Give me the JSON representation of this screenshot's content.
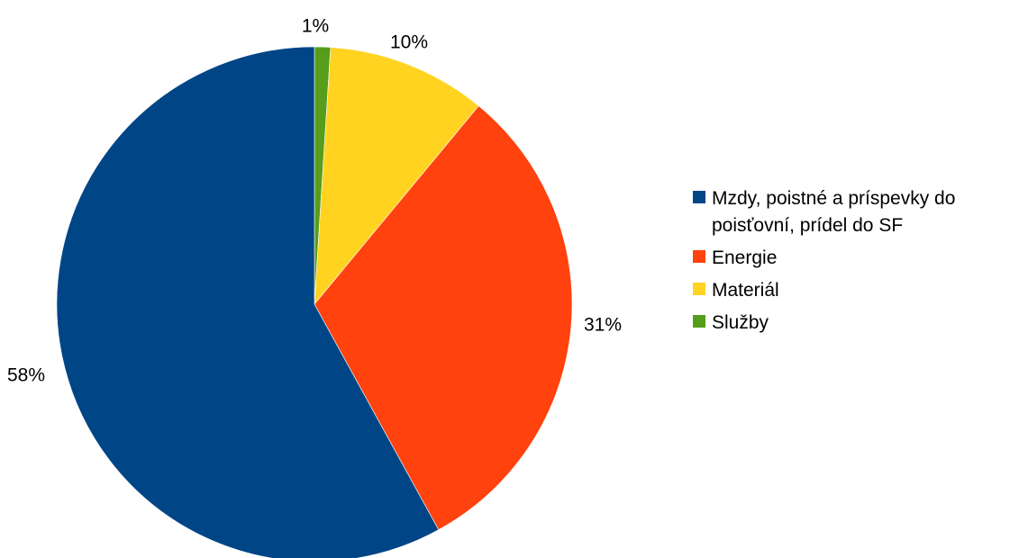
{
  "chart_data": {
    "type": "pie",
    "slices": [
      {
        "label": "Mzdy, poistné a príspevky do poisťovní, prídel do SF",
        "value": 58,
        "value_label": "58%",
        "color": "#004586"
      },
      {
        "label": "Energie",
        "value": 31,
        "value_label": "31%",
        "color": "#ff420e"
      },
      {
        "label": "Materiál",
        "value": 10,
        "value_label": "10%",
        "color": "#ffd320"
      },
      {
        "label": "Služby",
        "value": 1,
        "value_label": "1%",
        "color": "#579d1c"
      }
    ],
    "legend_position": "right",
    "title": ""
  }
}
